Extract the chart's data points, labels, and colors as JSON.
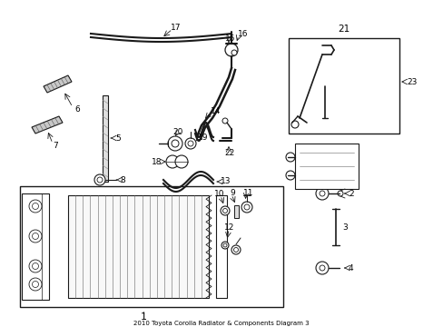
{
  "title": "2010 Toyota Corolla Radiator & Components Diagram 3",
  "bg_color": "#ffffff",
  "line_color": "#1a1a1a",
  "text_color": "#000000",
  "fig_width": 4.89,
  "fig_height": 3.6,
  "dpi": 100
}
